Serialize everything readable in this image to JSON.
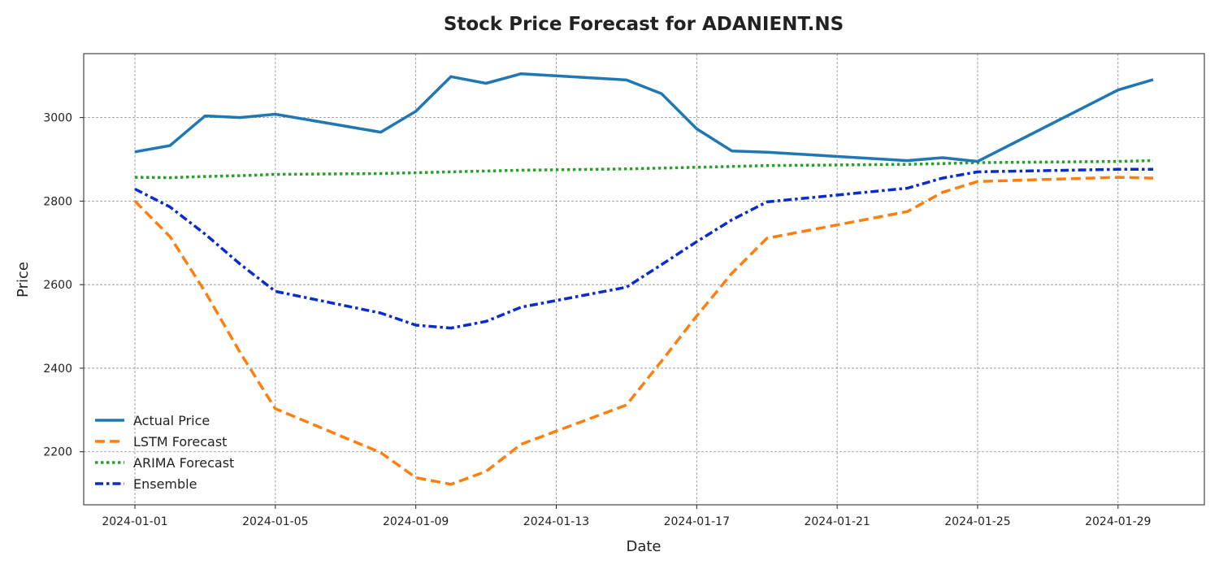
{
  "chart_data": {
    "type": "line",
    "title": "Stock Price Forecast for ADANIENT.NS",
    "xlabel": "Date",
    "ylabel": "Price",
    "x_ticks": [
      "2024-01-01",
      "2024-01-05",
      "2024-01-09",
      "2024-01-13",
      "2024-01-17",
      "2024-01-21",
      "2024-01-25",
      "2024-01-29"
    ],
    "y_ticks": [
      2200,
      2400,
      2600,
      2800,
      3000
    ],
    "xlim": [
      "2023-12-30 13:00",
      "2024-01-31 11:00"
    ],
    "ylim": [
      2073,
      3153
    ],
    "grid": true,
    "legend_position": "lower-left",
    "series": [
      {
        "name": "Actual Price",
        "color": "#1f77b4",
        "style": "solid",
        "points": [
          [
            "2024-01-01",
            2918
          ],
          [
            "2024-01-02",
            2933
          ],
          [
            "2024-01-03",
            3004
          ],
          [
            "2024-01-04",
            3000
          ],
          [
            "2024-01-05",
            3008
          ],
          [
            "2024-01-08",
            2965
          ],
          [
            "2024-01-09",
            3015
          ],
          [
            "2024-01-10",
            3098
          ],
          [
            "2024-01-11",
            3082
          ],
          [
            "2024-01-12",
            3105
          ],
          [
            "2024-01-15",
            3090
          ],
          [
            "2024-01-16",
            3057
          ],
          [
            "2024-01-17",
            2973
          ],
          [
            "2024-01-18",
            2920
          ],
          [
            "2024-01-19",
            2917
          ],
          [
            "2024-01-23",
            2897
          ],
          [
            "2024-01-24",
            2904
          ],
          [
            "2024-01-25",
            2895
          ],
          [
            "2024-01-29",
            3066
          ],
          [
            "2024-01-30",
            3091
          ]
        ]
      },
      {
        "name": "LSTM Forecast",
        "color": "#ff7f0e",
        "style": "dashed",
        "points": [
          [
            "2024-01-01",
            2800
          ],
          [
            "2024-01-02",
            2715
          ],
          [
            "2024-01-03",
            2583
          ],
          [
            "2024-01-04",
            2437
          ],
          [
            "2024-01-05",
            2303
          ],
          [
            "2024-01-08",
            2198
          ],
          [
            "2024-01-09",
            2138
          ],
          [
            "2024-01-10",
            2122
          ],
          [
            "2024-01-11",
            2153
          ],
          [
            "2024-01-12",
            2218
          ],
          [
            "2024-01-15",
            2312
          ],
          [
            "2024-01-16",
            2417
          ],
          [
            "2024-01-17",
            2525
          ],
          [
            "2024-01-18",
            2627
          ],
          [
            "2024-01-19",
            2711
          ],
          [
            "2024-01-23",
            2775
          ],
          [
            "2024-01-24",
            2821
          ],
          [
            "2024-01-25",
            2847
          ],
          [
            "2024-01-29",
            2857
          ],
          [
            "2024-01-30",
            2855
          ]
        ]
      },
      {
        "name": "ARIMA Forecast",
        "color": "#2ca02c",
        "style": "dotted",
        "points": [
          [
            "2024-01-01",
            2857
          ],
          [
            "2024-01-02",
            2856
          ],
          [
            "2024-01-03",
            2859
          ],
          [
            "2024-01-04",
            2861
          ],
          [
            "2024-01-05",
            2864
          ],
          [
            "2024-01-08",
            2866
          ],
          [
            "2024-01-09",
            2868
          ],
          [
            "2024-01-10",
            2870
          ],
          [
            "2024-01-11",
            2872
          ],
          [
            "2024-01-12",
            2874
          ],
          [
            "2024-01-15",
            2877
          ],
          [
            "2024-01-16",
            2879
          ],
          [
            "2024-01-17",
            2881
          ],
          [
            "2024-01-18",
            2883
          ],
          [
            "2024-01-19",
            2885
          ],
          [
            "2024-01-23",
            2888
          ],
          [
            "2024-01-24",
            2890
          ],
          [
            "2024-01-25",
            2892
          ],
          [
            "2024-01-29",
            2895
          ],
          [
            "2024-01-30",
            2897
          ]
        ]
      },
      {
        "name": "Ensemble",
        "color": "#0a2ccc",
        "style": "dashdot",
        "points": [
          [
            "2024-01-01",
            2829
          ],
          [
            "2024-01-02",
            2786
          ],
          [
            "2024-01-03",
            2721
          ],
          [
            "2024-01-04",
            2649
          ],
          [
            "2024-01-05",
            2584
          ],
          [
            "2024-01-08",
            2532
          ],
          [
            "2024-01-09",
            2503
          ],
          [
            "2024-01-10",
            2496
          ],
          [
            "2024-01-11",
            2512
          ],
          [
            "2024-01-12",
            2546
          ],
          [
            "2024-01-15",
            2594
          ],
          [
            "2024-01-16",
            2648
          ],
          [
            "2024-01-17",
            2703
          ],
          [
            "2024-01-18",
            2755
          ],
          [
            "2024-01-19",
            2798
          ],
          [
            "2024-01-23",
            2831
          ],
          [
            "2024-01-24",
            2855
          ],
          [
            "2024-01-25",
            2870
          ],
          [
            "2024-01-29",
            2876
          ],
          [
            "2024-01-30",
            2876
          ]
        ]
      }
    ]
  }
}
